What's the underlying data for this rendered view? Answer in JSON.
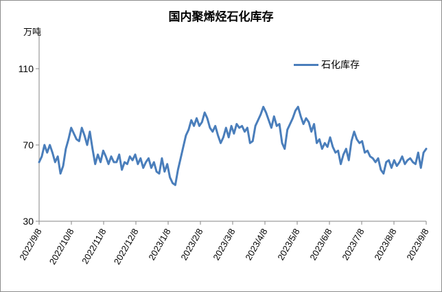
{
  "chart_data": {
    "type": "line",
    "title": "国内聚烯烃石化库存",
    "ylabel": "万吨",
    "ylim": [
      30,
      110
    ],
    "yticks": [
      30,
      70,
      110
    ],
    "xticks": [
      "2022/9/8",
      "2022/10/8",
      "2022/11/8",
      "2022/12/8",
      "2023/1/8",
      "2023/2/8",
      "2023/3/8",
      "2023/4/8",
      "2023/5/8",
      "2023/6/8",
      "2023/7/8",
      "2023/8/8",
      "2023/9/8"
    ],
    "x_start": "2022-09-08",
    "x_end": "2023-09-08",
    "grid": false,
    "legend_position": "top-right",
    "color": "#4a7ebb",
    "series": [
      {
        "name": "石化库存",
        "values": [
          61,
          64,
          70,
          66,
          70,
          66,
          61,
          64,
          55,
          59,
          68,
          73,
          79,
          76,
          73,
          72,
          79,
          75,
          70,
          77,
          68,
          60,
          65,
          61,
          67,
          64,
          60,
          64,
          61,
          61,
          65,
          57,
          61,
          60,
          64,
          62,
          65,
          60,
          63,
          58,
          61,
          63,
          58,
          61,
          56,
          55,
          63,
          56,
          60,
          53,
          50,
          49,
          57,
          63,
          69,
          75,
          78,
          83,
          80,
          84,
          80,
          82,
          87,
          84,
          79,
          77,
          80,
          75,
          71,
          74,
          79,
          74,
          80,
          76,
          81,
          79,
          80,
          77,
          79,
          71,
          72,
          80,
          83,
          86,
          90,
          87,
          83,
          79,
          85,
          80,
          81,
          71,
          68,
          78,
          81,
          84,
          88,
          90,
          85,
          81,
          84,
          82,
          77,
          81,
          71,
          73,
          68,
          71,
          69,
          74,
          69,
          66,
          67,
          60,
          65,
          68,
          62,
          72,
          77,
          73,
          71,
          72,
          66,
          67,
          64,
          63,
          61,
          63,
          57,
          55,
          61,
          62,
          58,
          62,
          59,
          61,
          64,
          60,
          62,
          63,
          61,
          60,
          66,
          58,
          66,
          68
        ]
      }
    ]
  }
}
